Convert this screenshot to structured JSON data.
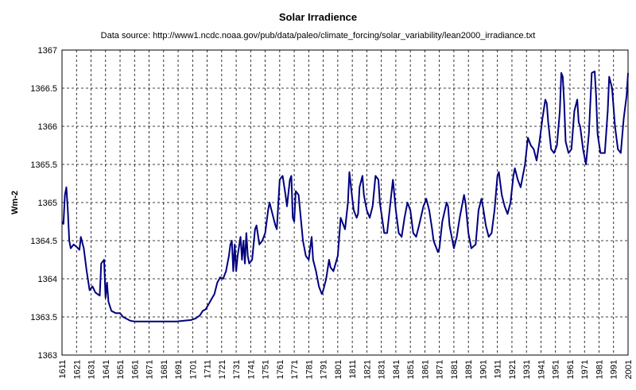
{
  "chart_data": {
    "type": "line",
    "title": "Solar Irradience",
    "subtitle": "Data source: http://www1.ncdc.noaa.gov/pub/data/paleo/climate_forcing/solar_variability/lean2000_irradiance.txt",
    "y_label": "Wm-2",
    "xlim": [
      1611,
      2001
    ],
    "xticks": [
      1611,
      1621,
      1631,
      1641,
      1651,
      1661,
      1671,
      1681,
      1691,
      1701,
      1711,
      1721,
      1731,
      1741,
      1751,
      1761,
      1771,
      1781,
      1791,
      1801,
      1811,
      1821,
      1831,
      1841,
      1851,
      1861,
      1871,
      1881,
      1891,
      1901,
      1911,
      1921,
      1931,
      1941,
      1951,
      1961,
      1971,
      1981,
      1991,
      2001
    ],
    "ylim": [
      1363,
      1367
    ],
    "yticks": [
      1363,
      1363.5,
      1364,
      1364.5,
      1365,
      1365.5,
      1366,
      1366.5,
      1367
    ],
    "grid": true,
    "series": [
      {
        "name": "Solar Irradience",
        "color": "#000080",
        "x": [
          1611,
          1612,
          1613,
          1614,
          1615,
          1616,
          1617,
          1619,
          1621,
          1623,
          1624,
          1626,
          1628,
          1630,
          1632,
          1634,
          1637,
          1638,
          1640,
          1641,
          1642,
          1643,
          1645,
          1648,
          1651,
          1653,
          1655,
          1658,
          1661,
          1670,
          1680,
          1690,
          1695,
          1700,
          1703,
          1706,
          1708,
          1710,
          1713,
          1716,
          1718,
          1720,
          1722,
          1724,
          1726,
          1727,
          1728,
          1729,
          1730,
          1731,
          1732,
          1734,
          1735,
          1736,
          1737,
          1738,
          1739,
          1740,
          1742,
          1744,
          1745,
          1747,
          1749,
          1751,
          1753,
          1754,
          1756,
          1758,
          1759,
          1761,
          1763,
          1765,
          1766,
          1768,
          1769,
          1770,
          1771,
          1772,
          1774,
          1775,
          1777,
          1779,
          1781,
          1782,
          1783,
          1784,
          1786,
          1788,
          1790,
          1791,
          1793,
          1795,
          1796,
          1798,
          1801,
          1803,
          1805,
          1806,
          1808,
          1809,
          1811,
          1812,
          1814,
          1815,
          1816,
          1818,
          1819,
          1821,
          1823,
          1825,
          1827,
          1829,
          1830,
          1833,
          1835,
          1837,
          1839,
          1841,
          1843,
          1845,
          1847,
          1849,
          1851,
          1853,
          1855,
          1857,
          1860,
          1862,
          1864,
          1866,
          1867,
          1870,
          1871,
          1873,
          1876,
          1877,
          1878,
          1880,
          1881,
          1883,
          1885,
          1888,
          1889,
          1891,
          1893,
          1896,
          1898,
          1900,
          1901,
          1903,
          1905,
          1907,
          1909,
          1911,
          1912,
          1914,
          1916,
          1918,
          1920,
          1922,
          1923,
          1925,
          1927,
          1930,
          1932,
          1934,
          1936,
          1938,
          1940,
          1942,
          1944,
          1945,
          1946,
          1948,
          1950,
          1952,
          1954,
          1955,
          1956,
          1957,
          1958,
          1960,
          1962,
          1964,
          1966,
          1967,
          1968,
          1970,
          1972,
          1974,
          1976,
          1978,
          1979,
          1980,
          1982,
          1985,
          1987,
          1988,
          1990,
          1992,
          1994,
          1996,
          1998,
          2000,
          2001
        ],
        "values": [
          1364.75,
          1364.72,
          1365.1,
          1365.2,
          1364.9,
          1364.5,
          1364.4,
          1364.45,
          1364.42,
          1364.38,
          1364.55,
          1364.4,
          1364.1,
          1363.85,
          1363.9,
          1363.82,
          1363.78,
          1364.2,
          1364.25,
          1363.75,
          1363.95,
          1363.7,
          1363.58,
          1363.55,
          1363.55,
          1363.5,
          1363.48,
          1363.45,
          1363.44,
          1363.44,
          1363.44,
          1363.44,
          1363.45,
          1363.46,
          1363.48,
          1363.52,
          1363.58,
          1363.6,
          1363.7,
          1363.8,
          1363.95,
          1364.02,
          1364.0,
          1364.1,
          1364.3,
          1364.45,
          1364.5,
          1364.1,
          1364.45,
          1364.1,
          1364.3,
          1364.55,
          1364.25,
          1364.5,
          1364.2,
          1364.6,
          1364.3,
          1364.2,
          1364.25,
          1364.65,
          1364.7,
          1364.45,
          1364.5,
          1364.6,
          1364.9,
          1365.0,
          1364.85,
          1364.7,
          1364.65,
          1365.3,
          1365.35,
          1365.1,
          1364.95,
          1365.3,
          1365.35,
          1364.8,
          1364.75,
          1365.15,
          1365.1,
          1364.9,
          1364.5,
          1364.3,
          1364.25,
          1364.4,
          1364.55,
          1364.25,
          1364.1,
          1363.9,
          1363.8,
          1363.85,
          1364.0,
          1364.25,
          1364.15,
          1364.1,
          1364.3,
          1364.8,
          1364.7,
          1364.65,
          1365.0,
          1365.4,
          1365.05,
          1364.9,
          1364.8,
          1364.85,
          1365.2,
          1365.35,
          1365.1,
          1364.9,
          1364.8,
          1364.95,
          1365.35,
          1365.3,
          1365.0,
          1364.6,
          1364.6,
          1364.95,
          1365.3,
          1364.9,
          1364.6,
          1364.55,
          1364.8,
          1365.0,
          1364.9,
          1364.6,
          1364.55,
          1364.7,
          1364.95,
          1365.05,
          1364.9,
          1364.65,
          1364.5,
          1364.35,
          1364.4,
          1364.75,
          1365.0,
          1364.95,
          1364.7,
          1364.5,
          1364.4,
          1364.55,
          1364.8,
          1365.1,
          1365.0,
          1364.6,
          1364.4,
          1364.45,
          1364.9,
          1365.05,
          1364.95,
          1364.7,
          1364.55,
          1364.6,
          1364.9,
          1365.35,
          1365.4,
          1365.1,
          1364.95,
          1364.85,
          1365.0,
          1365.35,
          1365.45,
          1365.3,
          1365.2,
          1365.5,
          1365.85,
          1365.75,
          1365.7,
          1365.55,
          1365.8,
          1366.1,
          1366.35,
          1366.3,
          1366.05,
          1365.7,
          1365.65,
          1365.75,
          1366.2,
          1366.7,
          1366.65,
          1366.3,
          1365.8,
          1365.65,
          1365.7,
          1366.2,
          1366.35,
          1366.05,
          1366.0,
          1365.7,
          1365.5,
          1365.9,
          1366.7,
          1366.72,
          1366.4,
          1365.9,
          1365.65,
          1365.65,
          1366.2,
          1366.65,
          1366.5,
          1366.0,
          1365.7,
          1365.65,
          1366.1,
          1366.4,
          1366.7
        ]
      }
    ]
  }
}
